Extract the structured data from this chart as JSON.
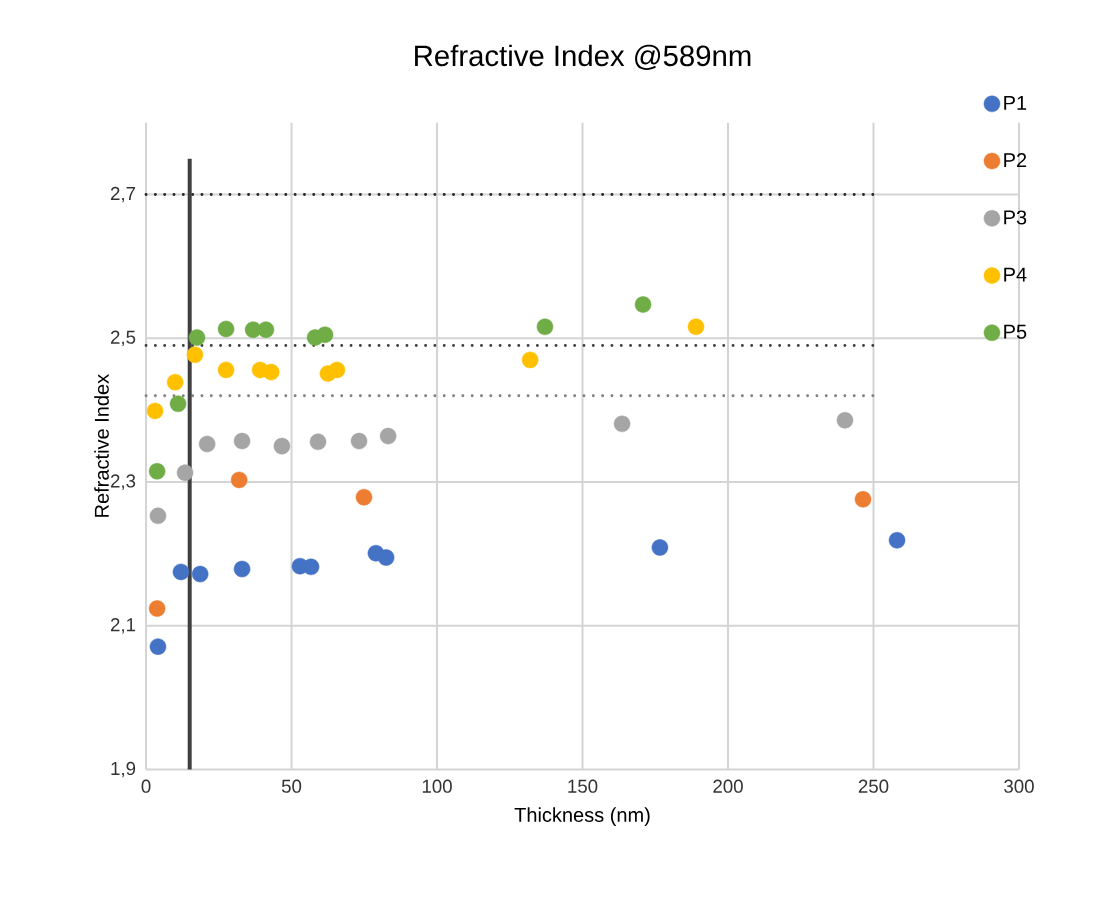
{
  "chart_data": {
    "type": "scatter",
    "title": "Refractive Index @589nm",
    "xlabel": "Thickness (nm)",
    "ylabel": "Refractive Index",
    "xlim": [
      0,
      300
    ],
    "xticks": [
      0,
      50,
      100,
      150,
      200,
      250,
      300
    ],
    "ylim": [
      1.9,
      2.8
    ],
    "yticks": [
      {
        "value": 1.9,
        "label": "1,9"
      },
      {
        "value": 2.1,
        "label": "2,1"
      },
      {
        "value": 2.3,
        "label": "2,3"
      },
      {
        "value": 2.5,
        "label": "2,5"
      },
      {
        "value": 2.7,
        "label": "2,7"
      }
    ],
    "grid": true,
    "legend": "right",
    "marker": "circle",
    "series": [
      {
        "name": "P1",
        "color": "#4472c4",
        "x": [
          4.1,
          12.0,
          18.6,
          33.0,
          52.9,
          56.7,
          79.0,
          82.5,
          176.6,
          258.1
        ],
        "values": [
          2.071,
          2.175,
          2.172,
          2.179,
          2.183,
          2.182,
          2.201,
          2.195,
          2.209,
          2.219
        ]
      },
      {
        "name": "P2",
        "color": "#ed7d31",
        "x": [
          3.8,
          32.0,
          74.9,
          246.4
        ],
        "values": [
          2.124,
          2.303,
          2.279,
          2.276
        ]
      },
      {
        "name": "P3",
        "color": "#a5a5a5",
        "x": [
          4.1,
          13.4,
          21.0,
          33.0,
          46.7,
          59.1,
          73.2,
          83.2,
          163.6,
          240.2
        ],
        "values": [
          2.253,
          2.313,
          2.353,
          2.357,
          2.35,
          2.356,
          2.357,
          2.364,
          2.381,
          2.386
        ]
      },
      {
        "name": "P4",
        "color": "#ffc000",
        "x": [
          3.1,
          10.0,
          16.8,
          27.5,
          39.2,
          43.0,
          62.5,
          65.6,
          132.0,
          189.0
        ],
        "values": [
          2.399,
          2.439,
          2.477,
          2.456,
          2.456,
          2.453,
          2.451,
          2.456,
          2.47,
          2.516
        ]
      },
      {
        "name": "P5",
        "color": "#70ad47",
        "x": [
          3.8,
          11.0,
          17.5,
          27.5,
          36.8,
          41.2,
          58.1,
          61.5,
          137.1,
          170.8
        ],
        "values": [
          2.315,
          2.409,
          2.501,
          2.513,
          2.512,
          2.512,
          2.501,
          2.505,
          2.516,
          2.547
        ]
      },
      {
        "type": "line",
        "marker": "none",
        "line_style": "dotted",
        "color": "#262626",
        "x": [
          0,
          250
        ],
        "values": [
          2.7,
          2.7
        ]
      },
      {
        "type": "line",
        "marker": "none",
        "line_style": "dotted",
        "color": "#404040",
        "x": [
          0,
          250
        ],
        "values": [
          2.49,
          2.49
        ]
      },
      {
        "type": "line",
        "marker": "none",
        "line_style": "dotted",
        "color": "#808080",
        "x": [
          0,
          250
        ],
        "values": [
          2.42,
          2.42
        ]
      },
      {
        "type": "line",
        "marker": "none",
        "line_style": "solid",
        "color": "#404040",
        "x": [
          15,
          15
        ],
        "values": [
          1.9,
          2.75
        ]
      }
    ]
  }
}
